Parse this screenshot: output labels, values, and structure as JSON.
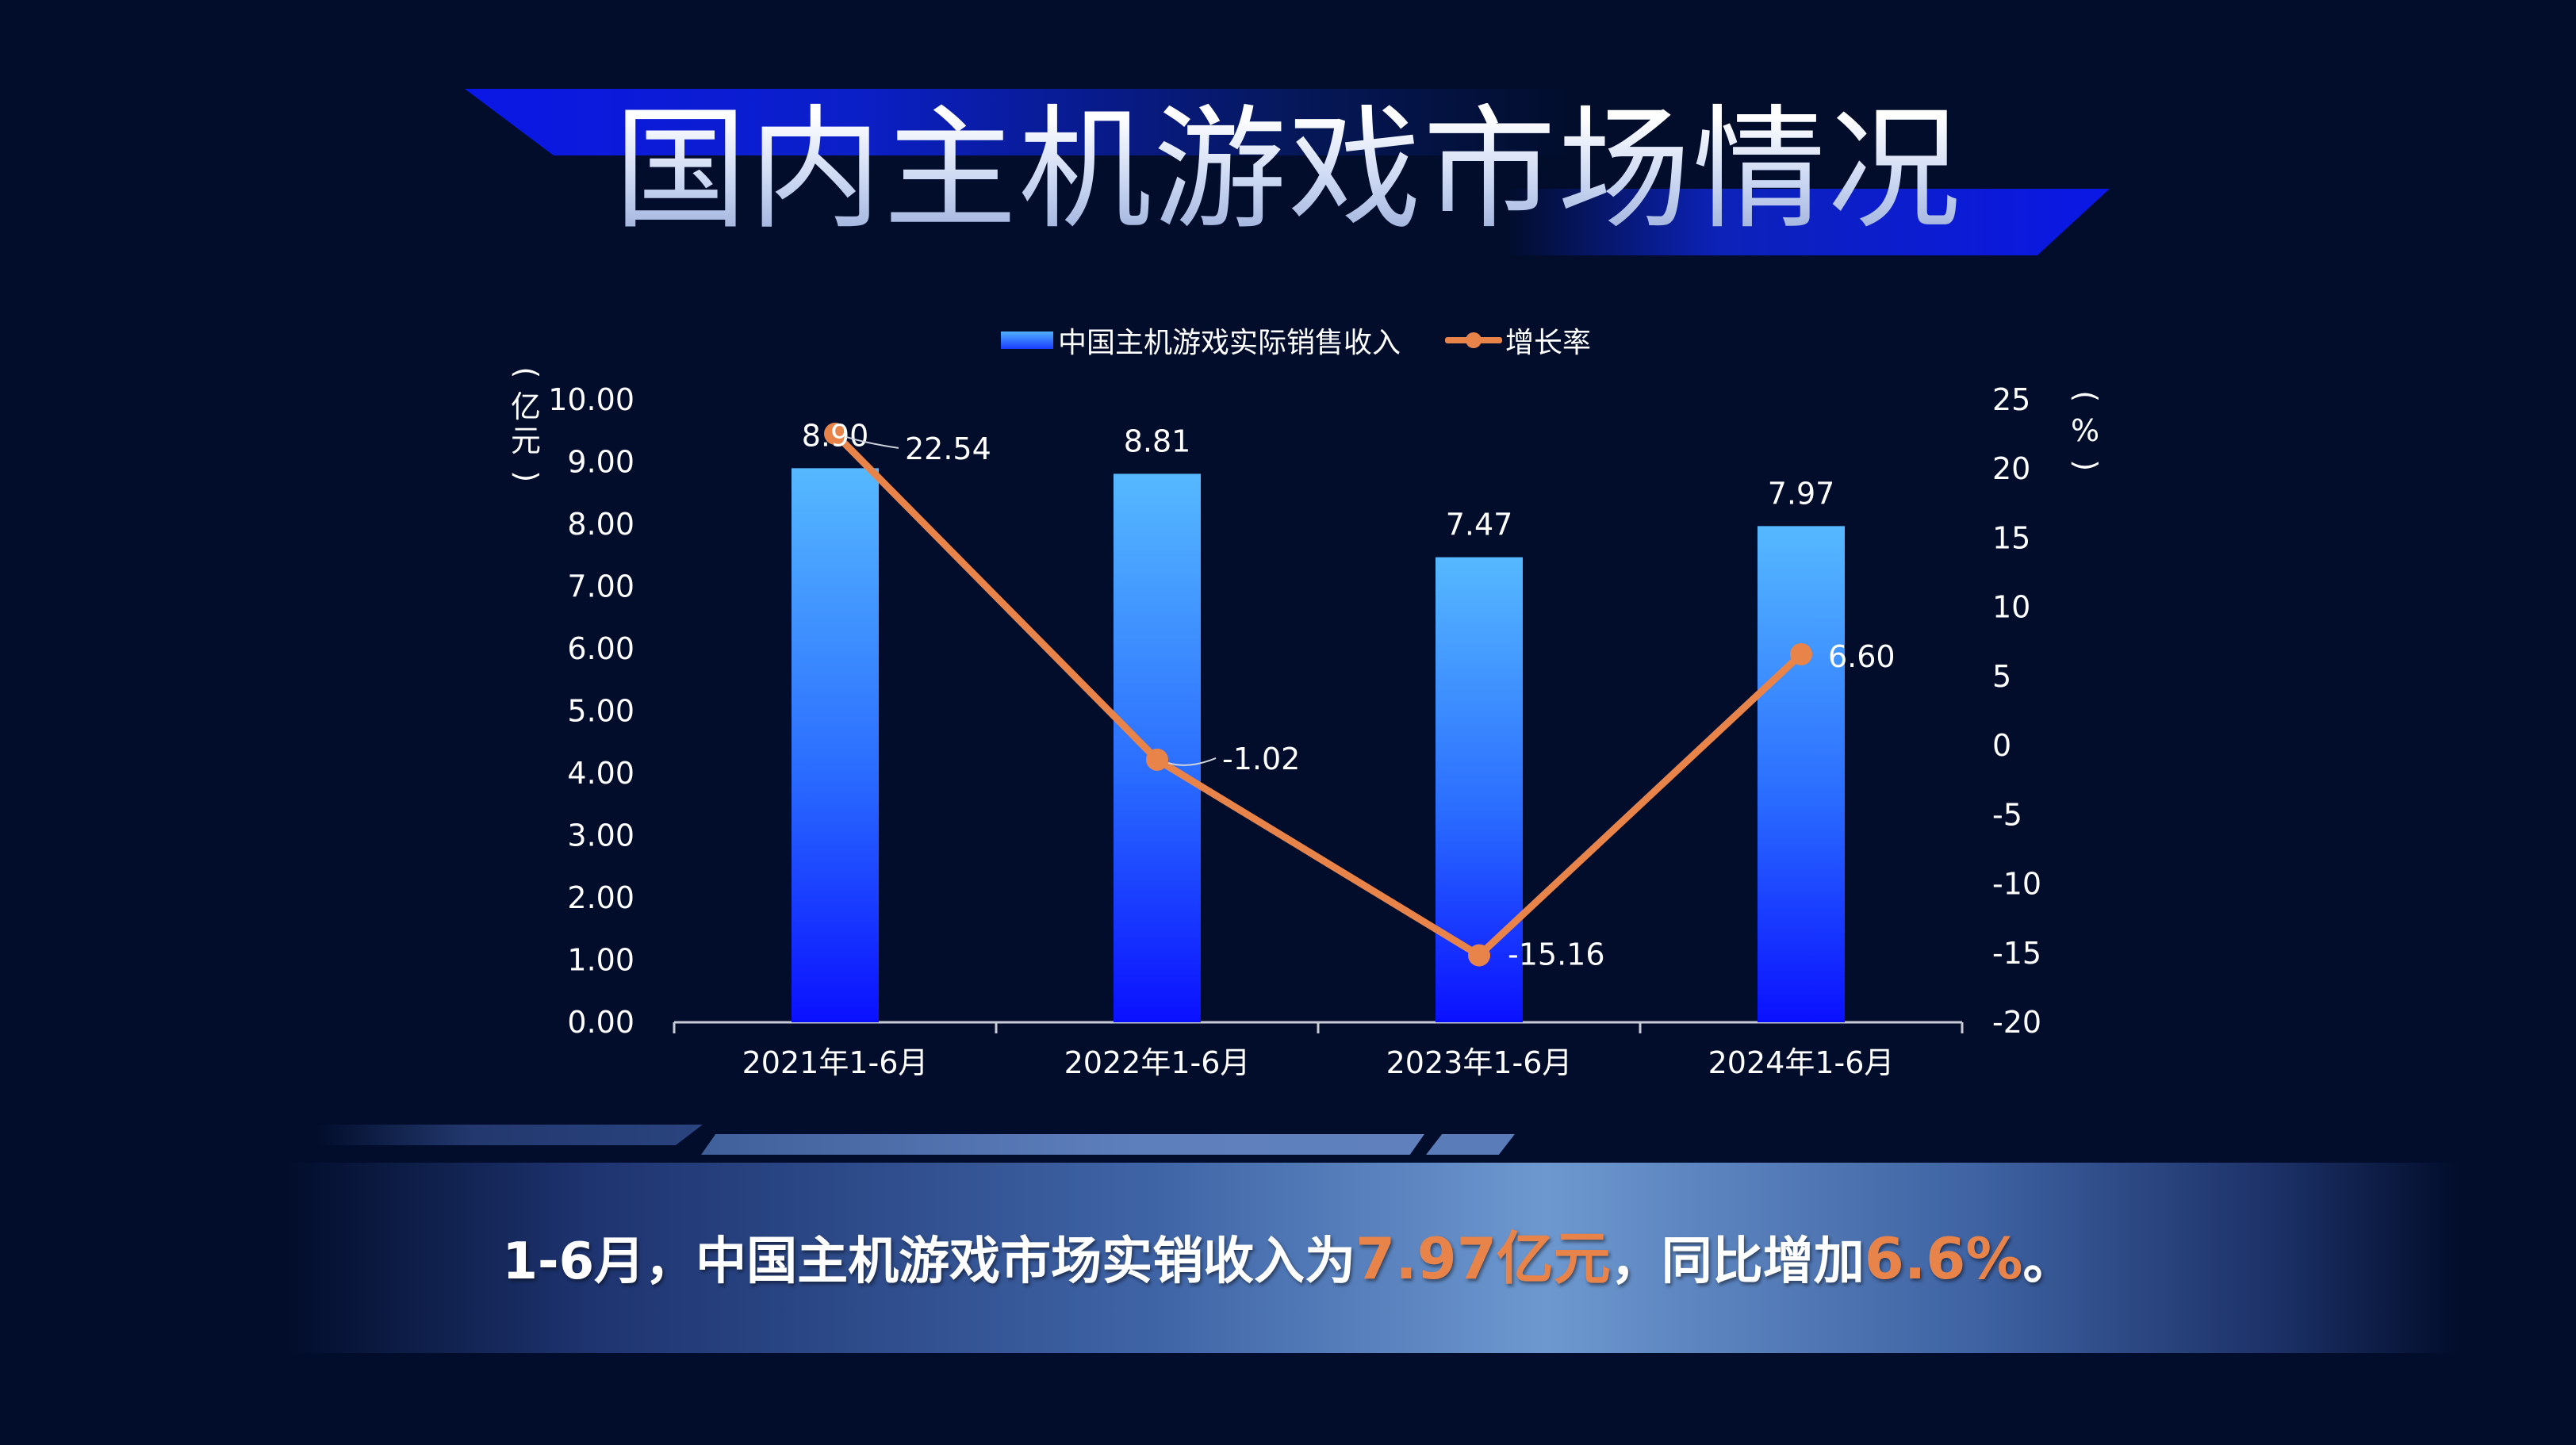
{
  "title": "国内主机游戏市场情况",
  "legend": {
    "bar_label": "中国主机游戏实际销售收入",
    "line_label": "增长率"
  },
  "axis": {
    "left_unit": "亿元",
    "right_unit": "%"
  },
  "summary": {
    "part1": "1-6月，中国主机游戏市场实销收入为",
    "highlight1": "7.97亿元",
    "part2": "，同比增加",
    "highlight2": "6.6%",
    "part3": "。"
  },
  "colors": {
    "background": "#020d2b",
    "bar_top": "#56b9ff",
    "bar_bottom": "#0a10ff",
    "line": "#e8834a",
    "accent_blue": "#0b17e6"
  },
  "chart_data": {
    "type": "bar",
    "categories": [
      "2021年1-6月",
      "2022年1-6月",
      "2023年1-6月",
      "2024年1-6月"
    ],
    "series": [
      {
        "name": "中国主机游戏实际销售收入",
        "type": "bar",
        "axis": "left",
        "values": [
          8.9,
          8.81,
          7.47,
          7.97
        ],
        "labels": [
          "8.90",
          "8.81",
          "7.47",
          "7.97"
        ]
      },
      {
        "name": "增长率",
        "type": "line",
        "axis": "right",
        "values": [
          22.54,
          -1.02,
          -15.16,
          6.6
        ],
        "labels": [
          "22.54",
          "-1.02",
          "-15.16",
          "6.60"
        ]
      }
    ],
    "left_axis": {
      "label": "亿元",
      "ylim": [
        0,
        10
      ],
      "ticks": [
        "0.00",
        "1.00",
        "2.00",
        "3.00",
        "4.00",
        "5.00",
        "6.00",
        "7.00",
        "8.00",
        "9.00",
        "10.00"
      ]
    },
    "right_axis": {
      "label": "%",
      "ylim": [
        -20,
        25
      ],
      "ticks": [
        "-20",
        "-15",
        "-10",
        "-5",
        "0",
        "5",
        "10",
        "15",
        "20",
        "25"
      ]
    },
    "grid": false,
    "legend_position": "top-center"
  }
}
